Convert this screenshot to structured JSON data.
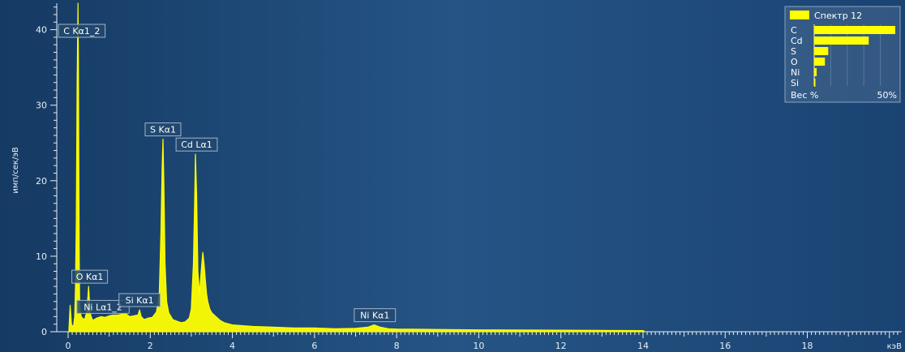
{
  "chart_data": {
    "type": "line",
    "xlabel": "кэВ",
    "ylabel": "имп/сек/эВ",
    "xlim": [
      0,
      20.3
    ],
    "ylim": [
      0,
      43.5
    ],
    "x_ticks": [
      0,
      2,
      4,
      6,
      8,
      10,
      12,
      14,
      16,
      18
    ],
    "y_ticks": [
      0,
      10,
      20,
      30,
      40
    ],
    "grid": false,
    "series": [
      {
        "color": "#ffff00",
        "fill": true,
        "x": [
          0.02,
          0.05,
          0.08,
          0.1,
          0.13,
          0.16,
          0.18,
          0.2,
          0.22,
          0.24,
          0.25,
          0.26,
          0.27,
          0.28,
          0.3,
          0.32,
          0.35,
          0.4,
          0.45,
          0.48,
          0.5,
          0.52,
          0.54,
          0.56,
          0.6,
          0.7,
          0.8,
          0.9,
          1.0,
          1.1,
          1.2,
          1.3,
          1.4,
          1.5,
          1.6,
          1.7,
          1.74,
          1.78,
          1.85,
          1.95,
          2.05,
          2.15,
          2.22,
          2.26,
          2.29,
          2.31,
          2.33,
          2.36,
          2.4,
          2.45,
          2.55,
          2.65,
          2.75,
          2.85,
          2.95,
          3.0,
          3.05,
          3.08,
          3.1,
          3.13,
          3.16,
          3.2,
          3.24,
          3.28,
          3.31,
          3.34,
          3.37,
          3.4,
          3.45,
          3.5,
          3.6,
          3.7,
          3.8,
          4.0,
          4.5,
          5.0,
          5.5,
          6.0,
          6.5,
          7.0,
          7.3,
          7.45,
          7.6,
          7.8,
          8.0,
          9.0,
          10.0,
          12.0,
          14.0,
          14.05
        ],
        "y": [
          0.3,
          3.5,
          1.0,
          0.8,
          0.7,
          2.0,
          6.0,
          15.0,
          33.0,
          43.5,
          36.0,
          22.0,
          10.0,
          4.0,
          2.5,
          2.0,
          1.8,
          1.6,
          2.5,
          4.5,
          6.0,
          4.0,
          2.5,
          2.0,
          1.5,
          1.8,
          2.0,
          1.9,
          2.1,
          2.2,
          2.2,
          2.3,
          2.4,
          2.0,
          2.1,
          2.2,
          2.9,
          2.0,
          1.6,
          1.8,
          1.9,
          2.6,
          5.0,
          13.0,
          22.0,
          25.5,
          20.0,
          9.0,
          4.0,
          2.5,
          1.6,
          1.4,
          1.2,
          1.3,
          1.8,
          3.0,
          9.0,
          17.0,
          23.5,
          18.0,
          8.0,
          5.0,
          8.0,
          10.5,
          9.0,
          7.0,
          5.0,
          4.0,
          3.0,
          2.5,
          2.0,
          1.5,
          1.2,
          0.9,
          0.7,
          0.6,
          0.5,
          0.5,
          0.4,
          0.45,
          0.6,
          0.9,
          0.6,
          0.4,
          0.35,
          0.3,
          0.25,
          0.2,
          0.15,
          0.0
        ]
      }
    ],
    "annotations": [
      {
        "label": "C Kα1_2",
        "x": 0.277,
        "y": 43.5
      },
      {
        "label": "O Kα1",
        "x": 0.525,
        "y": 6.0
      },
      {
        "label": "Ni Lα1_2",
        "x": 0.85,
        "y": 2.0
      },
      {
        "label": "Si Kα1",
        "x": 1.74,
        "y": 2.9
      },
      {
        "label": "S Kα1",
        "x": 2.31,
        "y": 25.5
      },
      {
        "label": "Cd Lα1",
        "x": 3.13,
        "y": 23.5
      },
      {
        "label": "Ni Kα1",
        "x": 7.47,
        "y": 0.9
      }
    ],
    "legend": {
      "title": "Спектр 12",
      "position": "top-right",
      "xlabel_left": "Вес %",
      "xlabel_right": "50%",
      "max": 50,
      "items": [
        {
          "label": "C",
          "value": 49
        },
        {
          "label": "Cd",
          "value": 33
        },
        {
          "label": "S",
          "value": 8.5
        },
        {
          "label": "O",
          "value": 6.5
        },
        {
          "label": "Ni",
          "value": 1.5
        },
        {
          "label": "Si",
          "value": 0.5
        }
      ]
    }
  }
}
